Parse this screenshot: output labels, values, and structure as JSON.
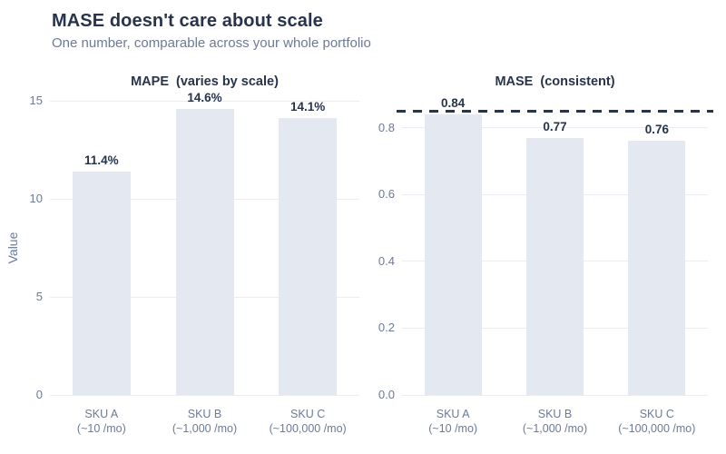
{
  "header": {
    "title": "MASE doesn't care about scale",
    "subtitle": "One number, comparable across your whole portfolio"
  },
  "colors": {
    "background": "#ffffff",
    "title_text": "#28344c",
    "muted_text": "#6b7a99",
    "bar_fill": "#e4e9f1",
    "gridline": "#e8edf3",
    "bar_label_text": "#25344e",
    "reference_line": "#1f3753"
  },
  "chart_data": [
    {
      "type": "bar",
      "title": "MAPE  (varies by scale)",
      "categories": [
        "SKU A",
        "SKU B",
        "SKU C"
      ],
      "category_sublabels": [
        "(~10 /mo)",
        "(~1,000 /mo)",
        "(~100,000 /mo)"
      ],
      "values": [
        11.4,
        14.6,
        14.1
      ],
      "bar_labels": [
        "11.4%",
        "14.6%",
        "14.1%"
      ],
      "xlabel": "",
      "ylabel": "Value",
      "ylim": [
        0,
        15
      ],
      "yticks": [
        0,
        5,
        10,
        15
      ],
      "ytick_labels": [
        "0",
        "5",
        "10",
        "15"
      ],
      "grid": true,
      "legend": false
    },
    {
      "type": "bar",
      "title": "MASE  (consistent)",
      "categories": [
        "SKU A",
        "SKU B",
        "SKU C"
      ],
      "category_sublabels": [
        "(~10 /mo)",
        "(~1,000 /mo)",
        "(~100,000 /mo)"
      ],
      "values": [
        0.84,
        0.77,
        0.76
      ],
      "bar_labels": [
        "0.84",
        "0.77",
        "0.76"
      ],
      "xlabel": "",
      "ylabel": "",
      "ylim": [
        0,
        0.9
      ],
      "yticks": [
        0.0,
        0.2,
        0.4,
        0.6,
        0.8
      ],
      "ytick_labels": [
        "0.0",
        "0.2",
        "0.4",
        "0.6",
        "0.8"
      ],
      "reference_line": 0.85,
      "grid": true,
      "legend": false
    }
  ]
}
